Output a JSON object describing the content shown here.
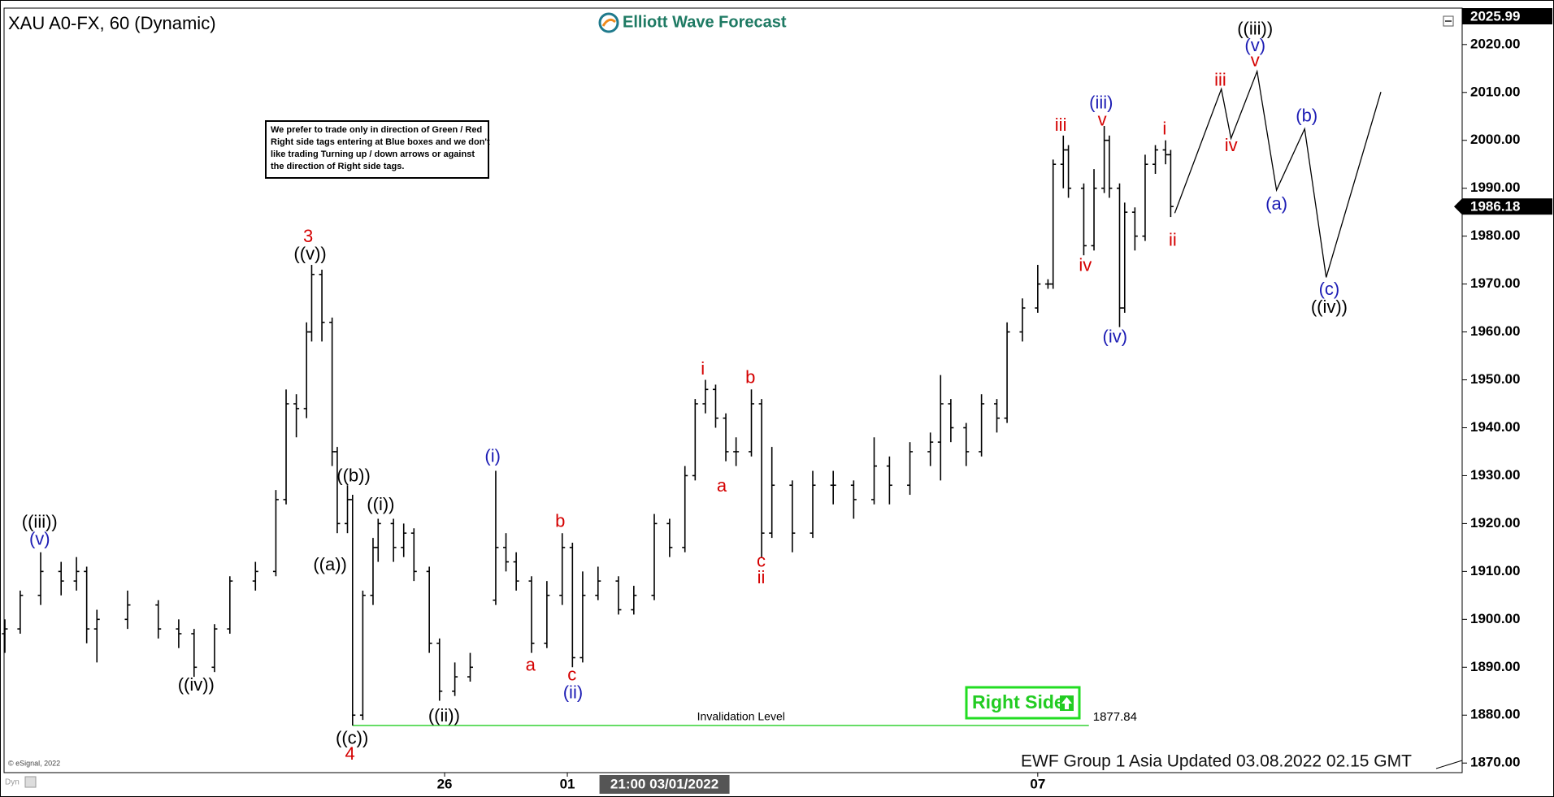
{
  "chart_data": {
    "type": "ohlc",
    "title": "XAU A0-FX, 60 (Dynamic)",
    "color": "#000000",
    "x": [
      0,
      3,
      7,
      11,
      14,
      16,
      18,
      24,
      30,
      34,
      37,
      41,
      44,
      49,
      53,
      55,
      57,
      59,
      60,
      62,
      64,
      65,
      67,
      68,
      70,
      72,
      73,
      76,
      78,
      80,
      83,
      85,
      88,
      91,
      96,
      98,
      100,
      103,
      106,
      109,
      111,
      113,
      116,
      120,
      123,
      127,
      130,
      133,
      135,
      137,
      139,
      141,
      143,
      146,
      148,
      150,
      154,
      158,
      162,
      166,
      170,
      173,
      177,
      181,
      183,
      185,
      188,
      191,
      194,
      196,
      199,
      202,
      204,
      205,
      207,
      208,
      211,
      213,
      215,
      216,
      218,
      219,
      221,
      223,
      225,
      227,
      228
    ],
    "open": [
      1897,
      1898,
      1905,
      1910,
      1908,
      1910,
      1898,
      1900,
      1903,
      1898,
      1897,
      1890,
      1898,
      1908,
      1910,
      1925,
      1945,
      1944,
      1960,
      1972,
      1962,
      1935,
      1920,
      1925,
      1880,
      1905,
      1915,
      1920,
      1915,
      1918,
      1910,
      1895,
      1885,
      1888,
      1904,
      1915,
      1912,
      1908,
      1895,
      1905,
      1915,
      1892,
      1905,
      1908,
      1902,
      1905,
      1920,
      1915,
      1930,
      1945,
      1948,
      1942,
      1935,
      1935,
      1945,
      1918,
      1928,
      1918,
      1928,
      1928,
      1925,
      1932,
      1928,
      1935,
      1937,
      1945,
      1940,
      1935,
      1945,
      1942,
      1960,
      1965,
      1970,
      1970,
      1995,
      1998,
      1990,
      1978,
      1990,
      2000,
      1990,
      1965,
      1985,
      1980,
      1995,
      1998,
      1997
    ],
    "high": [
      1900,
      1906,
      1914,
      1912,
      1913,
      1911,
      1902,
      1906,
      1904,
      1900,
      1898,
      1899,
      1909,
      1912,
      1927,
      1948,
      1947,
      1962,
      1974,
      1973,
      1963,
      1936,
      1928,
      1926,
      1906,
      1917,
      1921,
      1921,
      1920,
      1919,
      1911,
      1896,
      1891,
      1893,
      1931,
      1918,
      1914,
      1909,
      1908,
      1918,
      1916,
      1910,
      1911,
      1909,
      1907,
      1922,
      1921,
      1932,
      1946,
      1950,
      1949,
      1943,
      1938,
      1948,
      1946,
      1936,
      1929,
      1931,
      1931,
      1929,
      1938,
      1934,
      1937,
      1939,
      1951,
      1946,
      1941,
      1947,
      1946,
      1962,
      1967,
      1974,
      1971,
      1996,
      2001,
      1999,
      1991,
      1994,
      2003,
      2001,
      1991,
      1987,
      1986,
      1997,
      1999,
      2000,
      1998
    ],
    "low": [
      1893,
      1897,
      1903,
      1905,
      1906,
      1895,
      1891,
      1898,
      1896,
      1894,
      1888,
      1889,
      1897,
      1906,
      1909,
      1924,
      1938,
      1942,
      1958,
      1958,
      1932,
      1918,
      1918,
      1877.84,
      1879,
      1903,
      1912,
      1912,
      1913,
      1908,
      1893,
      1883,
      1884,
      1887,
      1903,
      1910,
      1906,
      1893,
      1894,
      1903,
      1890,
      1891,
      1904,
      1901,
      1901,
      1904,
      1913,
      1914,
      1929,
      1943,
      1940,
      1933,
      1932,
      1934,
      1913,
      1917,
      1914,
      1917,
      1924,
      1921,
      1924,
      1924,
      1926,
      1932,
      1929,
      1937,
      1932,
      1934,
      1939,
      1941,
      1958,
      1964,
      1969,
      1969,
      1990,
      1988,
      1976,
      1977,
      1989,
      1988,
      1961,
      1964,
      1977,
      1979,
      1993,
      1995,
      1984
    ],
    "close": [
      1898,
      1905,
      1910,
      1908,
      1910,
      1898,
      1900,
      1903,
      1898,
      1897,
      1890,
      1898,
      1908,
      1910,
      1925,
      1945,
      1944,
      1960,
      1972,
      1962,
      1935,
      1920,
      1925,
      1880,
      1905,
      1915,
      1920,
      1915,
      1918,
      1910,
      1895,
      1885,
      1888,
      1890,
      1915,
      1912,
      1908,
      1895,
      1905,
      1915,
      1892,
      1905,
      1908,
      1902,
      1905,
      1920,
      1915,
      1930,
      1945,
      1948,
      1942,
      1935,
      1935,
      1945,
      1918,
      1928,
      1918,
      1928,
      1928,
      1925,
      1932,
      1928,
      1935,
      1937,
      1945,
      1940,
      1935,
      1945,
      1942,
      1960,
      1965,
      1970,
      1970,
      1995,
      1998,
      1990,
      1978,
      1990,
      2000,
      1990,
      1965,
      1985,
      1980,
      1995,
      1998,
      1997,
      1986.18
    ],
    "xlim": [
      0,
      285
    ],
    "ylim": [
      1868,
      2027.6
    ],
    "yticks": [
      {
        "value": 1870,
        "label": "1870.00"
      },
      {
        "value": 1880,
        "label": "1880.00"
      },
      {
        "value": 1890,
        "label": "1890.00"
      },
      {
        "value": 1900,
        "label": "1900.00"
      },
      {
        "value": 1910,
        "label": "1910.00"
      },
      {
        "value": 1920,
        "label": "1920.00"
      },
      {
        "value": 1930,
        "label": "1930.00"
      },
      {
        "value": 1940,
        "label": "1940.00"
      },
      {
        "value": 1950,
        "label": "1950.00"
      },
      {
        "value": 1960,
        "label": "1960.00"
      },
      {
        "value": 1970,
        "label": "1970.00"
      },
      {
        "value": 1980,
        "label": "1980.00"
      },
      {
        "value": 1990,
        "label": "1990.00"
      },
      {
        "value": 2000,
        "label": "2000.00"
      },
      {
        "value": 2010,
        "label": "2010.00"
      },
      {
        "value": 2020,
        "label": "2020.00"
      }
    ],
    "xticks": [
      {
        "value": 86,
        "label": "26"
      },
      {
        "value": 110,
        "label": "01"
      },
      {
        "value": 202,
        "label": "07"
      }
    ],
    "crosshair_x": {
      "value": 129,
      "label": "21:00 03/01/2022"
    },
    "price_tags": [
      2025.99,
      1986.18
    ],
    "grid": false,
    "invalidation": {
      "value": 1877.84,
      "label": "Invalidation Level",
      "x": [
        68,
        212
      ],
      "color": "#66dd66"
    },
    "projection": {
      "x": [
        228.8,
        237.9,
        239.8,
        244.9,
        248.7,
        254.2,
        258.4,
        269.1
      ],
      "y": [
        1984.8,
        2010.7,
        2000.4,
        2014.4,
        1989.6,
        2002.4,
        1971.4,
        2010.1
      ]
    },
    "wave_labels": [
      {
        "text": "((iii))",
        "x": 6.8,
        "y": 1920.1,
        "color": "#000000"
      },
      {
        "text": "(v)",
        "x": 6.8,
        "y": 1916.6,
        "color": "#1c1cb4"
      },
      {
        "text": "((iv))",
        "x": 37.4,
        "y": 1886.1,
        "color": "#000000"
      },
      {
        "text": "3",
        "x": 59.3,
        "y": 1979.7,
        "color": "#d40000"
      },
      {
        "text": "((v))",
        "x": 59.7,
        "y": 1976.1,
        "color": "#000000"
      },
      {
        "text": "((b))",
        "x": 68.2,
        "y": 1929.8,
        "color": "#000000"
      },
      {
        "text": "((a))",
        "x": 63.6,
        "y": 1911.2,
        "color": "#000000"
      },
      {
        "text": "((i))",
        "x": 73.5,
        "y": 1923.8,
        "color": "#000000"
      },
      {
        "text": "((c))",
        "x": 67.9,
        "y": 1875.0,
        "color": "#000000"
      },
      {
        "text": "4",
        "x": 67.5,
        "y": 1871.7,
        "color": "#d40000"
      },
      {
        "text": "((ii))",
        "x": 85.9,
        "y": 1879.7,
        "color": "#000000"
      },
      {
        "text": "(i)",
        "x": 95.4,
        "y": 1933.9,
        "color": "#1c1cb4"
      },
      {
        "text": "a",
        "x": 102.8,
        "y": 1890.3,
        "color": "#d40000"
      },
      {
        "text": "b",
        "x": 108.6,
        "y": 1920.3,
        "color": "#d40000"
      },
      {
        "text": "c",
        "x": 110.9,
        "y": 1888.2,
        "color": "#d40000"
      },
      {
        "text": "(ii)",
        "x": 111.1,
        "y": 1884.5,
        "color": "#1c1cb4"
      },
      {
        "text": "i",
        "x": 136.5,
        "y": 1952.1,
        "color": "#d40000"
      },
      {
        "text": "a",
        "x": 140.2,
        "y": 1927.7,
        "color": "#d40000"
      },
      {
        "text": "b",
        "x": 145.8,
        "y": 1950.3,
        "color": "#d40000"
      },
      {
        "text": "c",
        "x": 147.9,
        "y": 1912.0,
        "color": "#d40000"
      },
      {
        "text": "ii",
        "x": 147.9,
        "y": 1908.5,
        "color": "#d40000"
      },
      {
        "text": "iii",
        "x": 206.5,
        "y": 2003.0,
        "color": "#d40000"
      },
      {
        "text": "iv",
        "x": 211.3,
        "y": 1973.7,
        "color": "#d40000"
      },
      {
        "text": "(iii)",
        "x": 214.4,
        "y": 2007.6,
        "color": "#1c1cb4"
      },
      {
        "text": "v",
        "x": 214.6,
        "y": 2004.1,
        "color": "#d40000"
      },
      {
        "text": "(iv)",
        "x": 217.1,
        "y": 1958.8,
        "color": "#1c1cb4"
      },
      {
        "text": "i",
        "x": 226.8,
        "y": 2002.2,
        "color": "#d40000"
      },
      {
        "text": "ii",
        "x": 228.4,
        "y": 1979.0,
        "color": "#d40000"
      },
      {
        "text": "iii",
        "x": 237.7,
        "y": 2012.4,
        "color": "#d40000"
      },
      {
        "text": "iv",
        "x": 239.8,
        "y": 1998.7,
        "color": "#d40000"
      },
      {
        "text": "((iii))",
        "x": 244.5,
        "y": 2023.1,
        "color": "#000000"
      },
      {
        "text": "(v)",
        "x": 244.5,
        "y": 2019.6,
        "color": "#1c1cb4"
      },
      {
        "text": "v",
        "x": 244.5,
        "y": 2016.5,
        "color": "#d40000"
      },
      {
        "text": "(b)",
        "x": 254.6,
        "y": 2004.9,
        "color": "#1c1cb4"
      },
      {
        "text": "(a)",
        "x": 248.7,
        "y": 1986.5,
        "color": "#1c1cb4"
      },
      {
        "text": "(c)",
        "x": 259.0,
        "y": 1968.7,
        "color": "#1c1cb4"
      },
      {
        "text": "((iv))",
        "x": 259.0,
        "y": 1965.0,
        "color": "#000000"
      }
    ]
  },
  "header": {
    "logo_text": "Elliott Wave Forecast"
  },
  "note": {
    "lines": [
      "We prefer to trade only in direction of Green / Red",
      "Right side tags entering at Blue boxes and we don't",
      "like trading Turning up / down arrows or against",
      "the direction of Right side tags."
    ]
  },
  "button": {
    "label": "Right Side"
  },
  "footer": {
    "updated": "EWF Group 1 Asia Updated 03.08.2022 02.15 GMT",
    "copyright": "© eSignal, 2022",
    "mode": "Dyn"
  }
}
